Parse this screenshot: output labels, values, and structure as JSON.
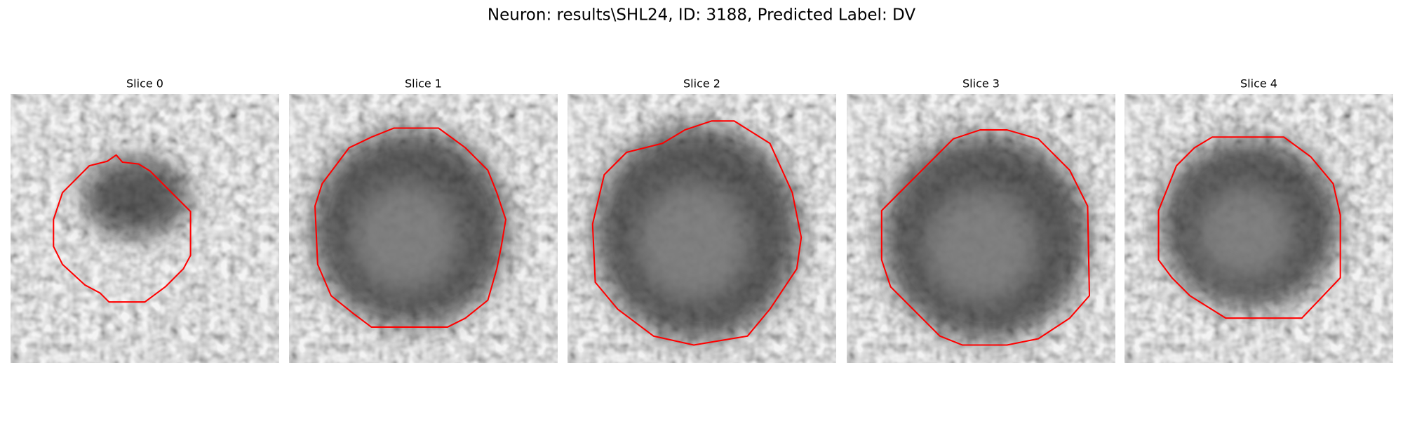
{
  "title": "Neuron: results\\SHL24, ID: 3188, Predicted Label: DV",
  "panels": [
    {
      "title": "Slice 0"
    },
    {
      "title": "Slice 1"
    },
    {
      "title": "Slice 2"
    },
    {
      "title": "Slice 3"
    },
    {
      "title": "Slice 4"
    }
  ]
}
